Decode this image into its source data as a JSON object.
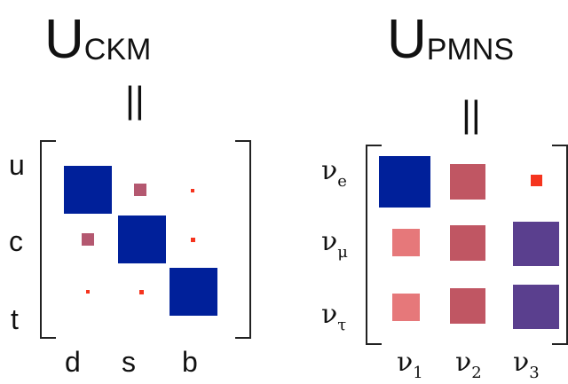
{
  "ckm": {
    "title_main": "U",
    "title_sub": "CKM",
    "equals": "||",
    "row_labels": [
      "u",
      "c",
      "t"
    ],
    "col_labels": [
      "d",
      "s",
      "b"
    ]
  },
  "pmns": {
    "title_main": "U",
    "title_sub": "PMNS",
    "equals": "||",
    "row_labels": [
      {
        "base": "ν",
        "sub": "e"
      },
      {
        "base": "ν",
        "sub": "μ"
      },
      {
        "base": "ν",
        "sub": "τ"
      }
    ],
    "col_labels": [
      {
        "base": "ν",
        "sub": "1"
      },
      {
        "base": "ν",
        "sub": "2"
      },
      {
        "base": "ν",
        "sub": "3"
      }
    ]
  },
  "colors": {
    "dark_blue": "#00209a",
    "purple": "#5a3f8e",
    "rose": "#c05663",
    "salmon": "#e6787a",
    "red": "#f5341e",
    "mauve": "#b45870"
  }
}
